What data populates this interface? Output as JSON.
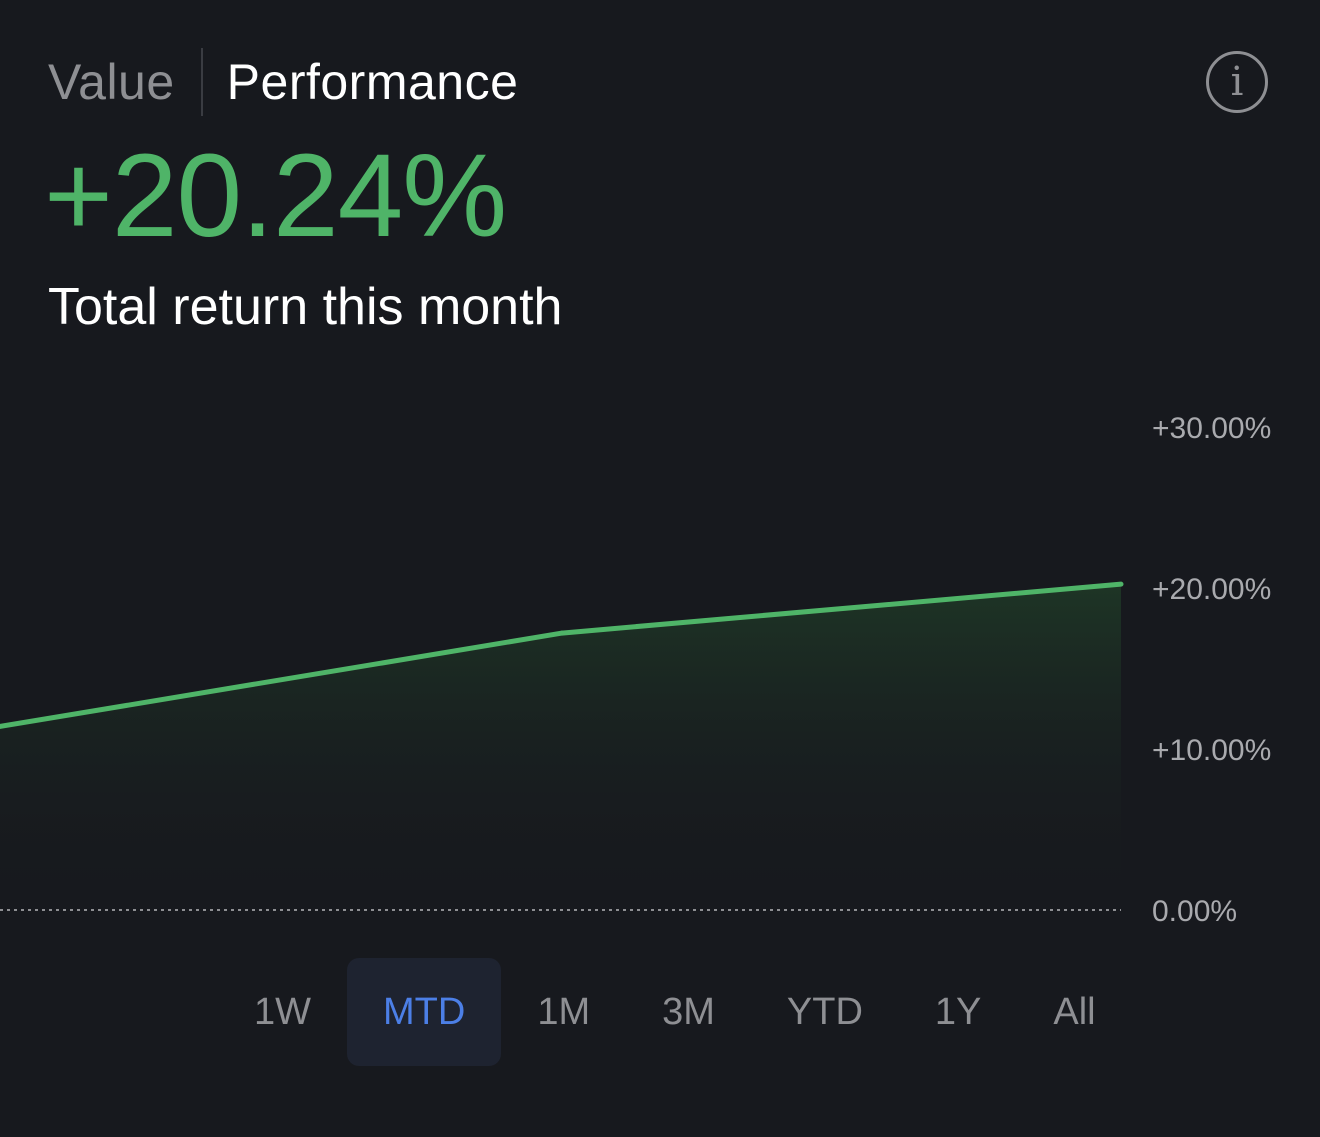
{
  "tabs": {
    "value_label": "Value",
    "performance_label": "Performance",
    "active": "Performance"
  },
  "info_icon": "info-icon",
  "summary": {
    "total_return": "+20.24%",
    "period_label": "Total return this month"
  },
  "colors": {
    "positive": "#4fb468",
    "selected_range": "#4c7fe6",
    "background": "#17191e"
  },
  "chart_data": {
    "type": "area",
    "title": "",
    "xlabel": "",
    "ylabel": "",
    "ylim": [
      0,
      30
    ],
    "y_ticks": [
      {
        "value": 30,
        "label": "+30.00%"
      },
      {
        "value": 20,
        "label": "+20.00%"
      },
      {
        "value": 10,
        "label": "+10.00%"
      },
      {
        "value": 0,
        "label": "0.00%"
      }
    ],
    "baseline": 0,
    "grid": false,
    "series": [
      {
        "values": [
          11.4,
          17.2,
          20.24
        ]
      }
    ]
  },
  "ranges": {
    "items": [
      "1W",
      "MTD",
      "1M",
      "3M",
      "YTD",
      "1Y",
      "All"
    ],
    "selected": "MTD"
  }
}
